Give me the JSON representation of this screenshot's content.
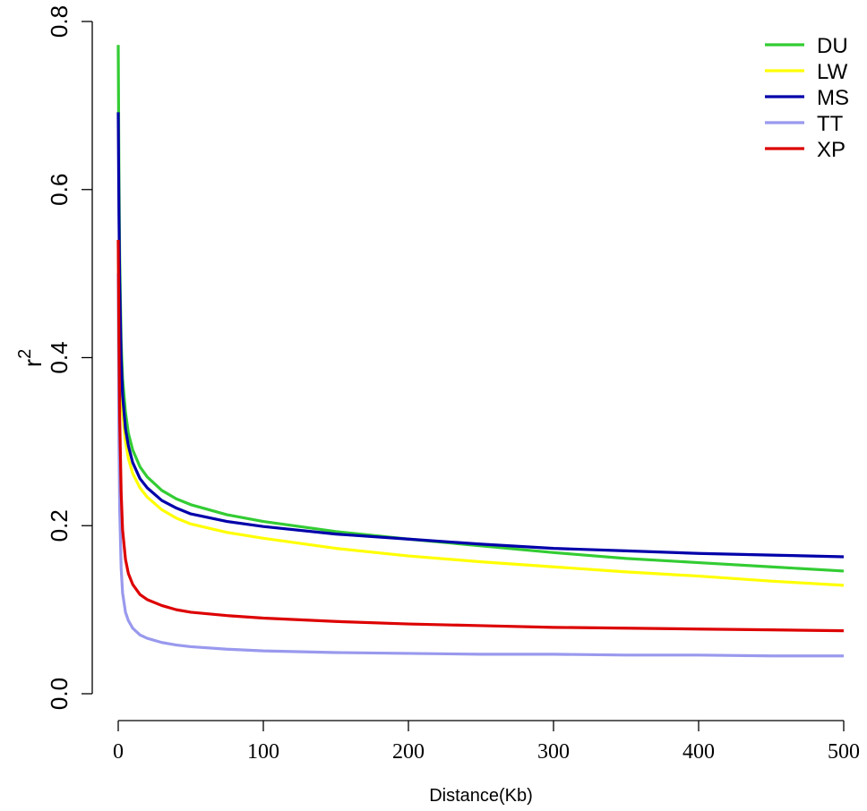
{
  "chart_data": {
    "type": "line",
    "title": "",
    "xlabel": "Distance(Kb)",
    "ylabel": "r",
    "ylabel_superscript": "2",
    "xlim": [
      0,
      500
    ],
    "ylim": [
      0,
      0.8
    ],
    "xticks": [
      0,
      100,
      200,
      300,
      400,
      500
    ],
    "xtick_labels": [
      "0",
      "100",
      "200",
      "300",
      "400",
      "500"
    ],
    "yticks": [
      0.0,
      0.2,
      0.4,
      0.6,
      0.8
    ],
    "ytick_labels": [
      "0.0",
      "0.2",
      "0.4",
      "0.6",
      "0.8"
    ],
    "grid": false,
    "legend_position": "top-right",
    "series": [
      {
        "name": "DU",
        "color": "#33cc33",
        "x": [
          0,
          0.5,
          1,
          2,
          3,
          5,
          7,
          10,
          15,
          20,
          30,
          40,
          50,
          75,
          100,
          150,
          200,
          250,
          300,
          350,
          400,
          450,
          500
        ],
        "y": [
          0.772,
          0.62,
          0.52,
          0.42,
          0.375,
          0.335,
          0.31,
          0.29,
          0.27,
          0.258,
          0.242,
          0.232,
          0.225,
          0.213,
          0.205,
          0.193,
          0.184,
          0.176,
          0.168,
          0.161,
          0.156,
          0.151,
          0.146
        ]
      },
      {
        "name": "LW",
        "color": "#ffff00",
        "x": [
          0,
          0.5,
          1,
          2,
          3,
          5,
          7,
          10,
          15,
          20,
          30,
          40,
          50,
          75,
          100,
          150,
          200,
          250,
          300,
          350,
          400,
          450,
          500
        ],
        "y": [
          0.54,
          0.48,
          0.44,
          0.37,
          0.335,
          0.3,
          0.28,
          0.262,
          0.245,
          0.234,
          0.219,
          0.209,
          0.202,
          0.192,
          0.185,
          0.173,
          0.164,
          0.157,
          0.151,
          0.145,
          0.14,
          0.134,
          0.129
        ]
      },
      {
        "name": "MS",
        "color": "#0000aa",
        "x": [
          0,
          0.5,
          1,
          2,
          3,
          5,
          7,
          10,
          15,
          20,
          30,
          40,
          50,
          75,
          100,
          150,
          200,
          250,
          300,
          350,
          400,
          450,
          500
        ],
        "y": [
          0.692,
          0.57,
          0.49,
          0.4,
          0.355,
          0.315,
          0.295,
          0.275,
          0.256,
          0.245,
          0.23,
          0.221,
          0.214,
          0.205,
          0.199,
          0.19,
          0.184,
          0.178,
          0.173,
          0.17,
          0.167,
          0.165,
          0.163
        ]
      },
      {
        "name": "TT",
        "color": "#9999ee",
        "x": [
          0,
          0.5,
          1,
          2,
          3,
          5,
          7,
          10,
          15,
          20,
          30,
          40,
          50,
          75,
          100,
          150,
          200,
          250,
          300,
          350,
          400,
          450,
          500
        ],
        "y": [
          0.5,
          0.3,
          0.22,
          0.15,
          0.12,
          0.097,
          0.087,
          0.078,
          0.07,
          0.066,
          0.061,
          0.058,
          0.056,
          0.053,
          0.051,
          0.049,
          0.048,
          0.047,
          0.047,
          0.046,
          0.046,
          0.045,
          0.045
        ]
      },
      {
        "name": "XP",
        "color": "#dd0000",
        "x": [
          0,
          0.5,
          1,
          2,
          3,
          5,
          7,
          10,
          15,
          20,
          30,
          40,
          50,
          75,
          100,
          150,
          200,
          250,
          300,
          350,
          400,
          450,
          500
        ],
        "y": [
          0.54,
          0.42,
          0.33,
          0.24,
          0.195,
          0.16,
          0.143,
          0.13,
          0.118,
          0.112,
          0.105,
          0.1,
          0.097,
          0.093,
          0.09,
          0.086,
          0.083,
          0.081,
          0.079,
          0.078,
          0.077,
          0.076,
          0.075
        ]
      }
    ]
  }
}
